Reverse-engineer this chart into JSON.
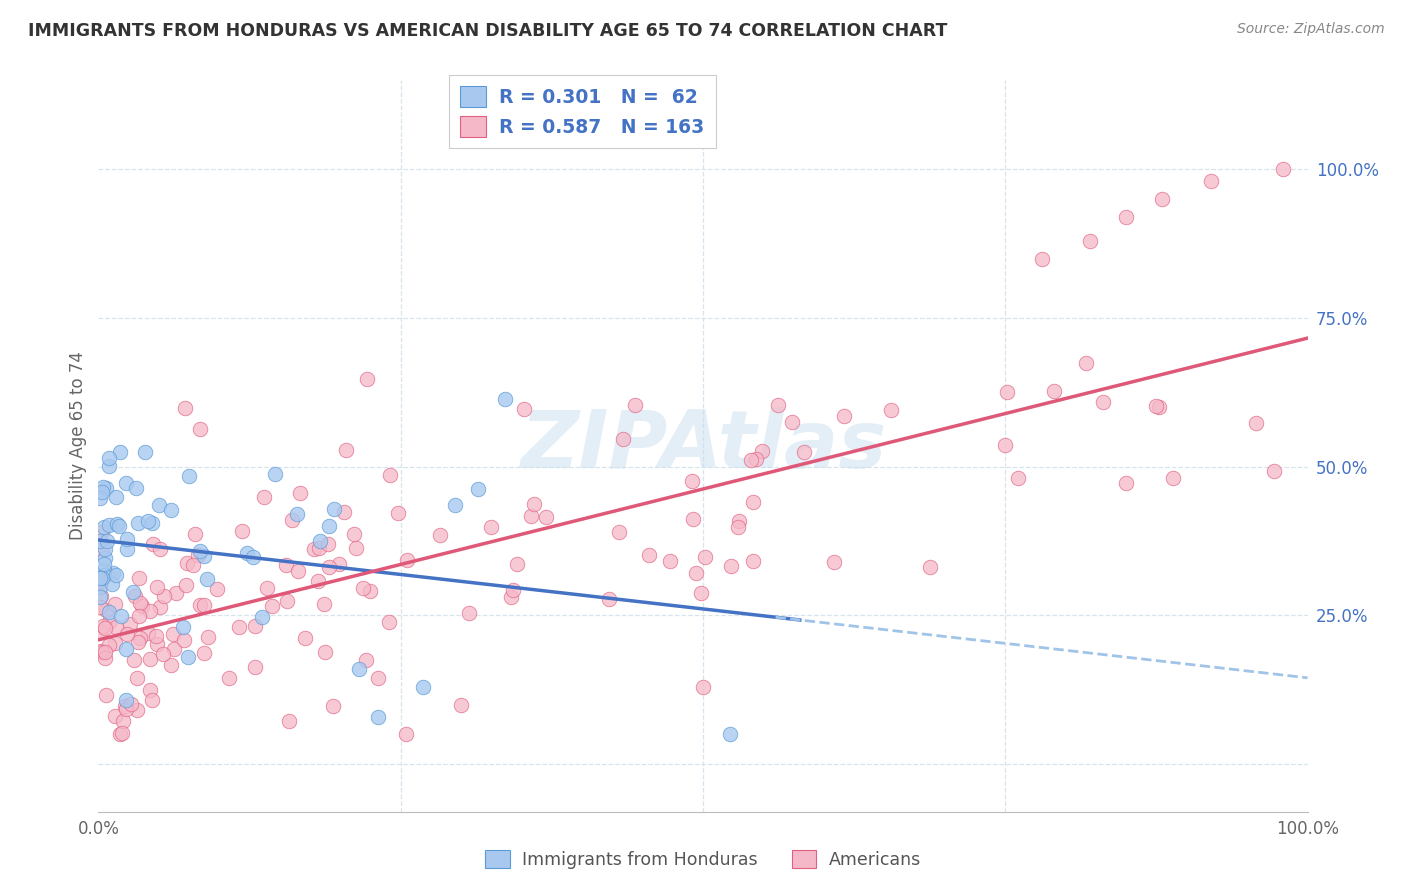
{
  "title": "IMMIGRANTS FROM HONDURAS VS AMERICAN DISABILITY AGE 65 TO 74 CORRELATION CHART",
  "source": "Source: ZipAtlas.com",
  "ylabel": "Disability Age 65 to 74",
  "xlim": [
    0,
    1
  ],
  "ylim": [
    -0.08,
    1.15
  ],
  "watermark": "ZIPAtlas",
  "legend_text_blue": "R = 0.301   N =  62",
  "legend_text_pink": "R = 0.587   N = 163",
  "blue_fill": "#a8c8f0",
  "blue_edge": "#5b9bd5",
  "pink_fill": "#f5b8c8",
  "pink_edge": "#e06080",
  "trendline_blue": "#4472c4",
  "trendline_pink": "#e05878",
  "trendline_dashed": "#a0c4e8",
  "ytick_color": "#4472c4",
  "title_color": "#333333",
  "source_color": "#888888",
  "watermark_color": "#c8dff0",
  "grid_color": "#d8e4ec",
  "label_color": "#666666"
}
